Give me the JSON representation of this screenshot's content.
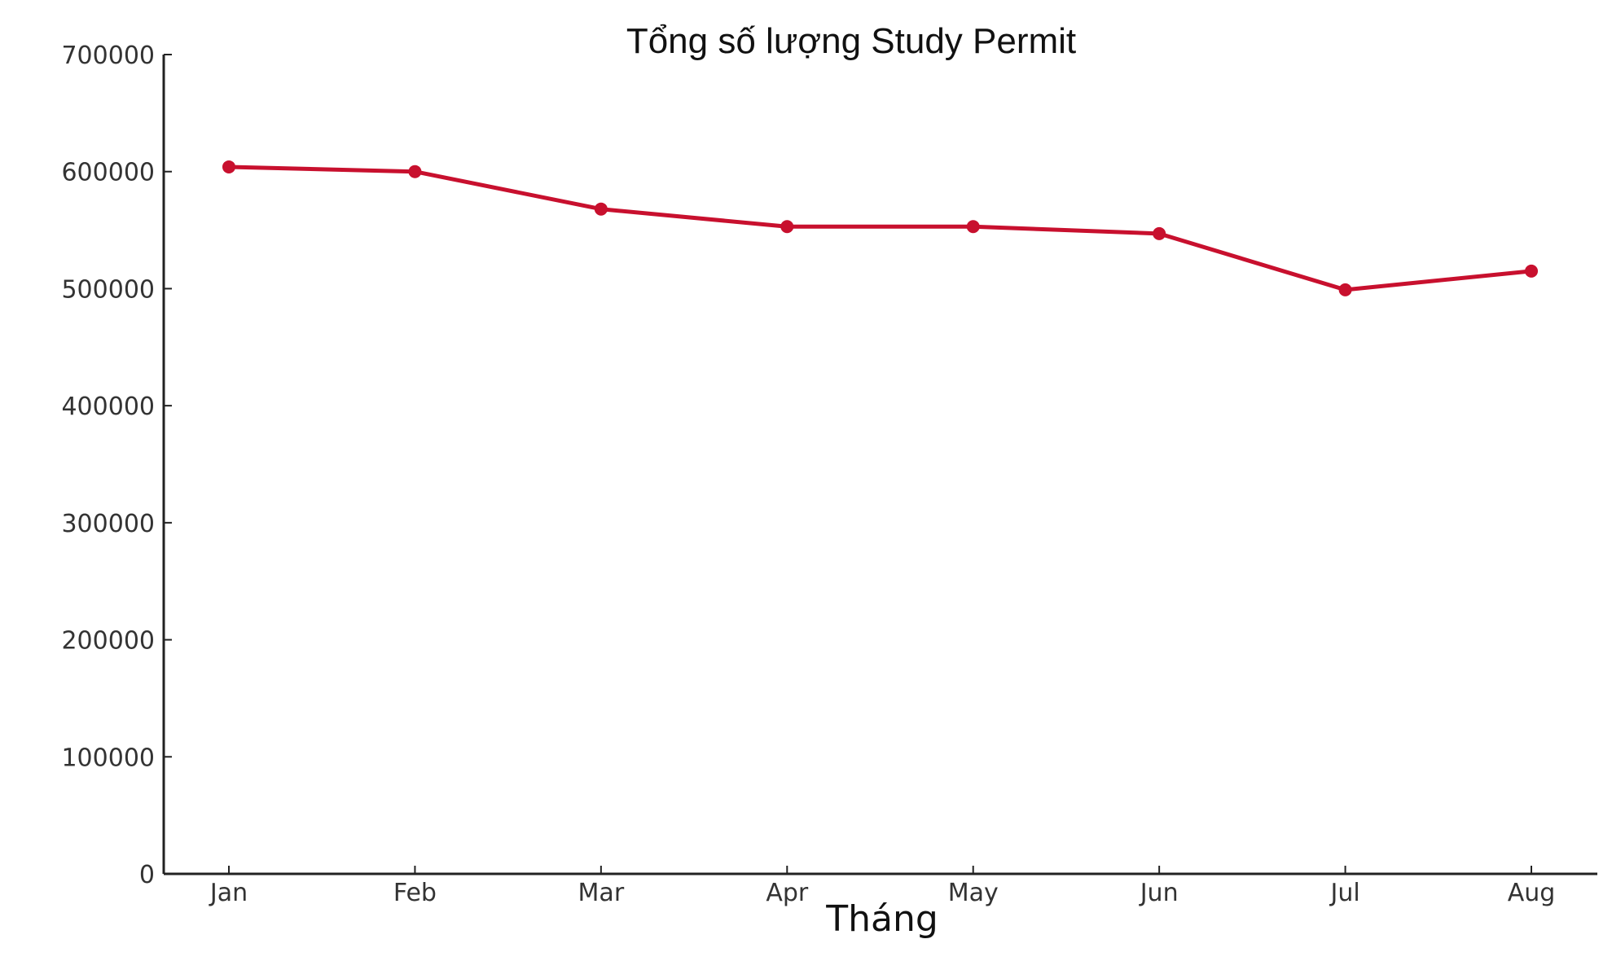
{
  "chart_data": {
    "type": "line",
    "title": "Tổng số lượng Study Permit",
    "xlabel": "Tháng",
    "ylabel": "",
    "categories": [
      "Jan",
      "Feb",
      "Mar",
      "Apr",
      "May",
      "Jun",
      "Jul",
      "Aug"
    ],
    "series": [
      {
        "name": "Tổng số lượng Study Permit",
        "values": [
          604000,
          600000,
          568000,
          553000,
          553000,
          547000,
          499000,
          515000
        ],
        "color": "#c8102e",
        "marker": "circle"
      }
    ],
    "ylim": [
      0,
      700000
    ],
    "yticks": [
      0,
      100000,
      200000,
      300000,
      400000,
      500000,
      600000,
      700000
    ],
    "ytick_labels": [
      "0",
      "100000",
      "200000",
      "300000",
      "400000",
      "500000",
      "600000",
      "700000"
    ],
    "grid": false,
    "legend": "none"
  },
  "labels": {
    "title": "Tổng số lượng Study Permit",
    "xlabel": "Tháng"
  }
}
